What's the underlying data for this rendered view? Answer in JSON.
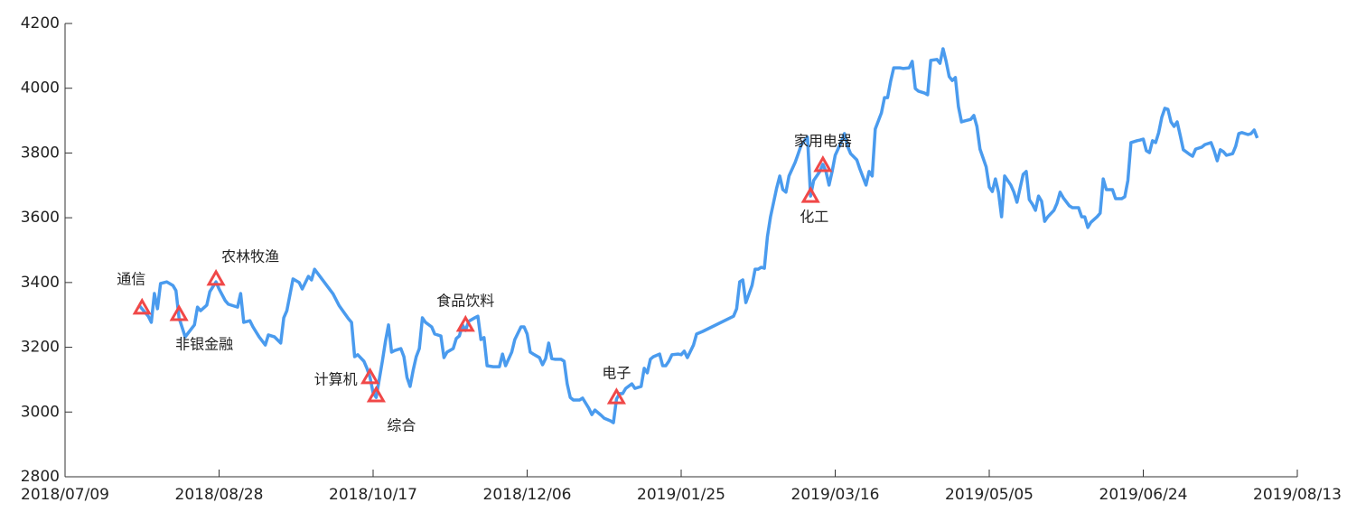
{
  "chart_data": {
    "type": "line",
    "color": "#4a9bee",
    "xlim": [
      "2018/07/09",
      "2019/08/13"
    ],
    "xticks": [
      "2018/07/09",
      "2018/08/28",
      "2018/10/17",
      "2018/12/06",
      "2019/01/25",
      "2019/03/16",
      "2019/05/05",
      "2019/06/24",
      "2019/08/13"
    ],
    "ylim": [
      2800,
      4200
    ],
    "yticks": [
      2800,
      3000,
      3200,
      3400,
      3600,
      3800,
      4000,
      4200
    ],
    "grid": false,
    "x": [
      "2018/08/02",
      "2018/08/05",
      "2018/08/06",
      "2018/08/07",
      "2018/08/08",
      "2018/08/09",
      "2018/08/11",
      "2018/08/13",
      "2018/08/14",
      "2018/08/15",
      "2018/08/17",
      "2018/08/19",
      "2018/08/20",
      "2018/08/21",
      "2018/08/22",
      "2018/08/24",
      "2018/08/25",
      "2018/08/27",
      "2018/08/28",
      "2018/08/30",
      "2018/08/31",
      "2018/09/03",
      "2018/09/04",
      "2018/09/05",
      "2018/09/07",
      "2018/09/08",
      "2018/09/10",
      "2018/09/12",
      "2018/09/13",
      "2018/09/15",
      "2018/09/17",
      "2018/09/18",
      "2018/09/19",
      "2018/09/21",
      "2018/09/23",
      "2018/09/24",
      "2018/09/26",
      "2018/09/27",
      "2018/09/28",
      "2018/10/01",
      "2018/10/04",
      "2018/10/06",
      "2018/10/09",
      "2018/10/10",
      "2018/10/11",
      "2018/10/12",
      "2018/10/14",
      "2018/10/15",
      "2018/10/16",
      "2018/10/17",
      "2018/10/18",
      "2018/10/19",
      "2018/10/20",
      "2018/10/21",
      "2018/10/22",
      "2018/10/23",
      "2018/10/24",
      "2018/10/26",
      "2018/10/27",
      "2018/10/28",
      "2018/10/29",
      "2018/10/30",
      "2018/10/31",
      "2018/11/01",
      "2018/11/02",
      "2018/11/03",
      "2018/11/05",
      "2018/11/06",
      "2018/11/08",
      "2018/11/09",
      "2018/11/10",
      "2018/11/12",
      "2018/11/13",
      "2018/11/14",
      "2018/11/15",
      "2018/11/16",
      "2018/11/17",
      "2018/11/19",
      "2018/11/20",
      "2018/11/21",
      "2018/11/22",
      "2018/11/23",
      "2018/11/25",
      "2018/11/27",
      "2018/11/28",
      "2018/11/29",
      "2018/12/01",
      "2018/12/02",
      "2018/12/04",
      "2018/12/05",
      "2018/12/06",
      "2018/12/07",
      "2018/12/08",
      "2018/12/10",
      "2018/12/11",
      "2018/12/12",
      "2018/12/13",
      "2018/12/14",
      "2018/12/15",
      "2018/12/17",
      "2018/12/18",
      "2018/12/19",
      "2018/12/20",
      "2018/12/21",
      "2018/12/23",
      "2018/12/24",
      "2018/12/26",
      "2018/12/27",
      "2018/12/28",
      "2018/12/30",
      "2018/12/31",
      "2019/01/02",
      "2019/01/03",
      "2019/01/04",
      "2019/01/05",
      "2019/01/06",
      "2019/01/07",
      "2019/01/09",
      "2019/01/10",
      "2019/01/12",
      "2019/01/13",
      "2019/01/14",
      "2019/01/15",
      "2019/01/16",
      "2019/01/18",
      "2019/01/19",
      "2019/01/20",
      "2019/01/21",
      "2019/01/22",
      "2019/01/24",
      "2019/01/25",
      "2019/01/26",
      "2019/01/27",
      "2019/01/29",
      "2019/01/30",
      "2019/02/01",
      "2019/02/11",
      "2019/02/12",
      "2019/02/13",
      "2019/02/14",
      "2019/02/15",
      "2019/02/17",
      "2019/02/18",
      "2019/02/19",
      "2019/02/20",
      "2019/02/21",
      "2019/02/22",
      "2019/02/23",
      "2019/02/25",
      "2019/02/26",
      "2019/02/27",
      "2019/02/28",
      "2019/03/01",
      "2019/03/03",
      "2019/03/04",
      "2019/03/05",
      "2019/03/07",
      "2019/03/08",
      "2019/03/09",
      "2019/03/11",
      "2019/03/12",
      "2019/03/13",
      "2019/03/14",
      "2019/03/15",
      "2019/03/16",
      "2019/03/18",
      "2019/03/19",
      "2019/03/20",
      "2019/03/21",
      "2019/03/23",
      "2019/03/24",
      "2019/03/25",
      "2019/03/26",
      "2019/03/27",
      "2019/03/28",
      "2019/03/29",
      "2019/03/31",
      "2019/04/01",
      "2019/04/02",
      "2019/04/03",
      "2019/04/04",
      "2019/04/06",
      "2019/04/07",
      "2019/04/09",
      "2019/04/10",
      "2019/04/11",
      "2019/04/12",
      "2019/04/14",
      "2019/04/15",
      "2019/04/16",
      "2019/04/18",
      "2019/04/19",
      "2019/04/20",
      "2019/04/21",
      "2019/04/22",
      "2019/04/23",
      "2019/04/24",
      "2019/04/25",
      "2019/04/26",
      "2019/04/27",
      "2019/04/29",
      "2019/04/30",
      "2019/05/01",
      "2019/05/02",
      "2019/05/04",
      "2019/05/05",
      "2019/05/06",
      "2019/05/07",
      "2019/05/08",
      "2019/05/09",
      "2019/05/10",
      "2019/05/12",
      "2019/05/13",
      "2019/05/14",
      "2019/05/16",
      "2019/05/17",
      "2019/05/18",
      "2019/05/19",
      "2019/05/20",
      "2019/05/21",
      "2019/05/22",
      "2019/05/23",
      "2019/05/24",
      "2019/05/26",
      "2019/05/27",
      "2019/05/28",
      "2019/05/29",
      "2019/05/31",
      "2019/06/01",
      "2019/06/03",
      "2019/06/04",
      "2019/06/05",
      "2019/06/06",
      "2019/06/07",
      "2019/06/09",
      "2019/06/10",
      "2019/06/11",
      "2019/06/12",
      "2019/06/14",
      "2019/06/15",
      "2019/06/17",
      "2019/06/18",
      "2019/06/19",
      "2019/06/20",
      "2019/06/22",
      "2019/06/23",
      "2019/06/24",
      "2019/06/25",
      "2019/06/26",
      "2019/06/27",
      "2019/06/28",
      "2019/06/29",
      "2019/06/30",
      "2019/07/01",
      "2019/07/02",
      "2019/07/03",
      "2019/07/04",
      "2019/07/05",
      "2019/07/06",
      "2019/07/07",
      "2019/07/09",
      "2019/07/10",
      "2019/07/11",
      "2019/07/13",
      "2019/07/14",
      "2019/07/16",
      "2019/07/17",
      "2019/07/18",
      "2019/07/19",
      "2019/07/20",
      "2019/07/21",
      "2019/07/23",
      "2019/07/24",
      "2019/07/25",
      "2019/07/26",
      "2019/07/28",
      "2019/07/29",
      "2019/07/30",
      "2019/07/31"
    ],
    "values": [
      3330,
      3296,
      3277,
      3366,
      3319,
      3397,
      3402,
      3391,
      3375,
      3291,
      3232,
      3257,
      3269,
      3324,
      3313,
      3330,
      3372,
      3402,
      3380,
      3344,
      3333,
      3324,
      3366,
      3277,
      3282,
      3263,
      3232,
      3207,
      3238,
      3232,
      3213,
      3291,
      3313,
      3411,
      3400,
      3380,
      3419,
      3408,
      3441,
      3403,
      3365,
      3328,
      3288,
      3277,
      3171,
      3177,
      3157,
      3135,
      3107,
      3059,
      3045,
      3101,
      3157,
      3218,
      3269,
      3185,
      3190,
      3196,
      3171,
      3107,
      3079,
      3129,
      3171,
      3196,
      3291,
      3277,
      3263,
      3241,
      3235,
      3168,
      3185,
      3196,
      3227,
      3235,
      3269,
      3252,
      3280,
      3291,
      3296,
      3224,
      3230,
      3143,
      3140,
      3140,
      3179,
      3143,
      3185,
      3224,
      3263,
      3263,
      3241,
      3185,
      3179,
      3168,
      3146,
      3165,
      3213,
      3165,
      3163,
      3163,
      3157,
      3087,
      3045,
      3037,
      3037,
      3043,
      3012,
      2992,
      3006,
      2990,
      2981,
      2973,
      2967,
      3040,
      3057,
      3057,
      3073,
      3087,
      3073,
      3079,
      3135,
      3121,
      3163,
      3171,
      3179,
      3143,
      3143,
      3157,
      3177,
      3179,
      3177,
      3188,
      3168,
      3207,
      3241,
      3249,
      3296,
      3319,
      3402,
      3408,
      3338,
      3391,
      3441,
      3441,
      3447,
      3444,
      3542,
      3603,
      3692,
      3729,
      3687,
      3679,
      3729,
      3771,
      3798,
      3826,
      3849,
      3667,
      3715,
      3743,
      3765,
      3743,
      3701,
      3743,
      3793,
      3835,
      3860,
      3821,
      3798,
      3779,
      3751,
      3726,
      3701,
      3743,
      3729,
      3874,
      3924,
      3971,
      3971,
      4022,
      4063,
      4063,
      4061,
      4063,
      4083,
      3999,
      3991,
      3985,
      3980,
      4086,
      4089,
      4077,
      4122,
      4083,
      4036,
      4024,
      4033,
      3943,
      3896,
      3899,
      3904,
      3916,
      3882,
      3812,
      3757,
      3695,
      3681,
      3720,
      3679,
      3603,
      3729,
      3701,
      3679,
      3648,
      3734,
      3743,
      3656,
      3642,
      3623,
      3667,
      3651,
      3589,
      3603,
      3623,
      3645,
      3679,
      3662,
      3637,
      3631,
      3631,
      3603,
      3603,
      3570,
      3586,
      3603,
      3614,
      3720,
      3687,
      3687,
      3659,
      3659,
      3665,
      3715,
      3832,
      3838,
      3840,
      3843,
      3807,
      3801,
      3838,
      3832,
      3863,
      3910,
      3938,
      3935,
      3896,
      3882,
      3896,
      3854,
      3810,
      3796,
      3790,
      3812,
      3818,
      3826,
      3832,
      3807,
      3776,
      3810,
      3804,
      3793,
      3798,
      3821,
      3860,
      3863,
      3857,
      3860,
      3871,
      3846
    ],
    "annotation_color": "#f04848",
    "annotations": [
      {
        "x": "2018/08/03",
        "y": 3322,
        "label": "通信",
        "position": "above-left"
      },
      {
        "x": "2018/08/15",
        "y": 3302,
        "label": "非银金融",
        "position": "below-right"
      },
      {
        "x": "2018/08/27",
        "y": 3411,
        "label": "农林牧渔",
        "position": "above-right"
      },
      {
        "x": "2018/10/16",
        "y": 3107,
        "label": "计算机",
        "position": "left"
      },
      {
        "x": "2018/10/18",
        "y": 3051,
        "label": "综合",
        "position": "below-right"
      },
      {
        "x": "2018/11/16",
        "y": 3269,
        "label": "食品饮料",
        "position": "above"
      },
      {
        "x": "2019/01/04",
        "y": 3045,
        "label": "电子",
        "position": "above"
      },
      {
        "x": "2019/03/12",
        "y": 3762,
        "label": "家用电器",
        "position": "above"
      },
      {
        "x": "2019/03/08",
        "y": 3667,
        "label": "化工",
        "position": "below"
      }
    ]
  }
}
